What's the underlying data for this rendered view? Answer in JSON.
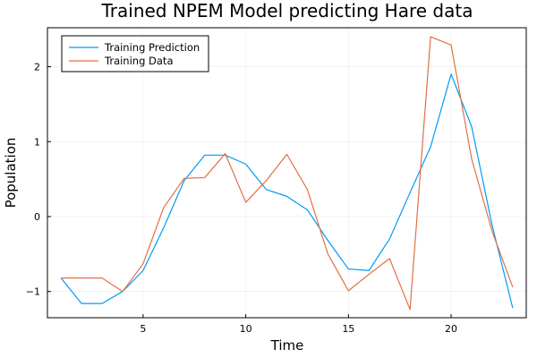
{
  "chart_data": {
    "type": "line",
    "title": "Trained NPEM Model predicting Hare data",
    "xlabel": "Time",
    "ylabel": "Population",
    "xlim": [
      0.34,
      23.66
    ],
    "ylim": [
      -1.35,
      2.52
    ],
    "xticks": [
      5,
      10,
      15,
      20
    ],
    "xtick_labels": [
      "5",
      "10",
      "15",
      "20"
    ],
    "yticks": [
      -1,
      0,
      1,
      2
    ],
    "ytick_labels": [
      "−1",
      "0",
      "1",
      "2"
    ],
    "grid": true,
    "legend_position": "top-left",
    "x": [
      1,
      2,
      3,
      4,
      5,
      6,
      7,
      8,
      9,
      10,
      11,
      12,
      13,
      14,
      15,
      16,
      17,
      18,
      19,
      20,
      21,
      22,
      23
    ],
    "series": [
      {
        "name": "Training Prediction",
        "color": "#009af9",
        "values": [
          -0.82,
          -1.16,
          -1.16,
          -1.0,
          -0.72,
          -0.15,
          0.48,
          0.82,
          0.82,
          0.7,
          0.36,
          0.27,
          0.09,
          -0.32,
          -0.7,
          -0.72,
          -0.3,
          0.32,
          0.93,
          1.9,
          1.2,
          -0.12,
          -1.22
        ]
      },
      {
        "name": "Training Data",
        "color": "#e26f46",
        "values": [
          -0.82,
          -0.82,
          -0.82,
          -1.0,
          -0.63,
          0.12,
          0.51,
          0.52,
          0.84,
          0.19,
          0.48,
          0.83,
          0.36,
          -0.5,
          -0.99,
          -0.77,
          -0.56,
          -1.24,
          2.4,
          2.29,
          0.77,
          -0.2,
          -0.94
        ]
      }
    ]
  }
}
